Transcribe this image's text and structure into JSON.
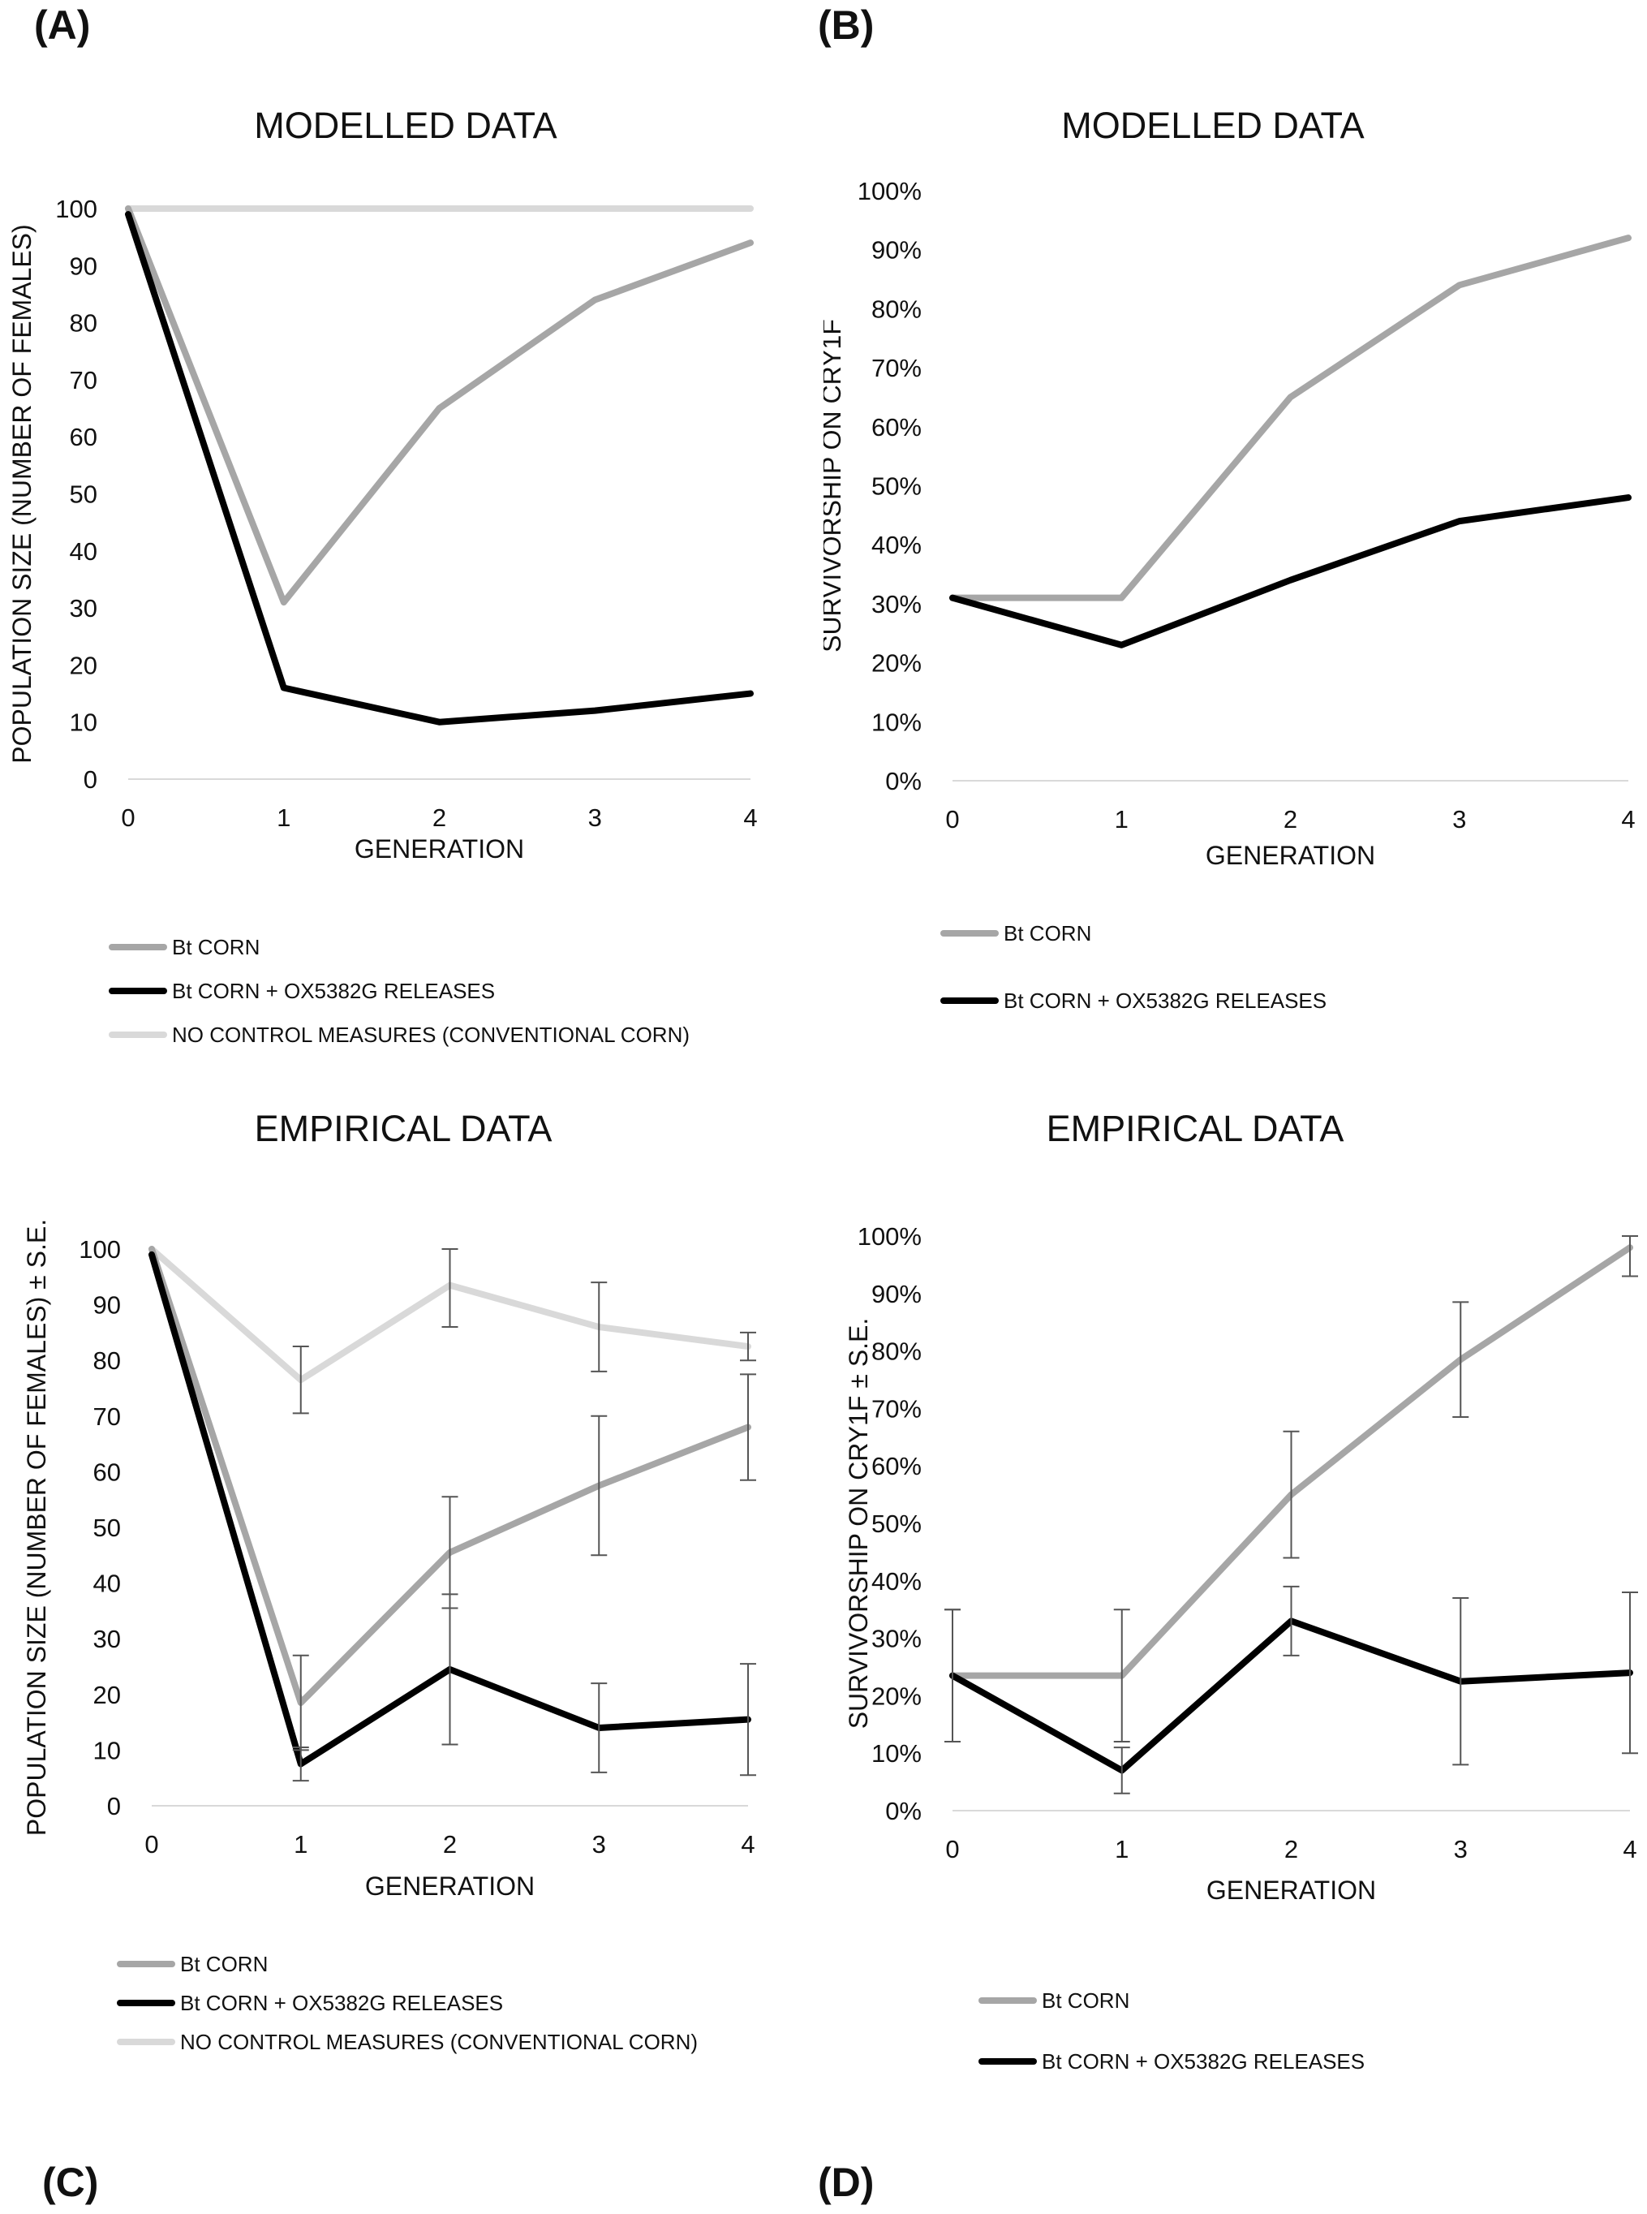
{
  "figure": {
    "panel_labels": [
      "(A)",
      "(B)",
      "(C)",
      "(D)"
    ]
  },
  "chart_data": [
    {
      "panel": "(A)",
      "type": "line",
      "title": "MODELLED DATA",
      "xlabel": "GENERATION",
      "ylabel": "POPULATION SIZE (NUMBER OF FEMALES)",
      "x": [
        0,
        1,
        2,
        3,
        4
      ],
      "xlim": [
        0,
        4
      ],
      "ylim": [
        0,
        100
      ],
      "yticks": [
        0,
        10,
        20,
        30,
        40,
        50,
        60,
        70,
        80,
        90,
        100
      ],
      "ytick_format": "number",
      "grid": false,
      "legend_position": "bottom",
      "series": [
        {
          "name": "Bt CORN",
          "color": "#a6a6a6",
          "values": [
            100,
            31,
            65,
            84,
            94
          ]
        },
        {
          "name": "Bt CORN + OX5382G RELEASES",
          "color": "#000000",
          "values": [
            99,
            16,
            10,
            12,
            15
          ]
        },
        {
          "name": "NO CONTROL MEASURES (CONVENTIONAL CORN)",
          "color": "#d9d9d9",
          "values": [
            100,
            100,
            100,
            100,
            100
          ]
        }
      ]
    },
    {
      "panel": "(B)",
      "type": "line",
      "title": "MODELLED DATA",
      "xlabel": "GENERATION",
      "ylabel": "SURVIVORSHIP ON CRY1F",
      "x": [
        0,
        1,
        2,
        3,
        4
      ],
      "xlim": [
        0,
        4
      ],
      "ylim": [
        0,
        100
      ],
      "yticks": [
        0,
        10,
        20,
        30,
        40,
        50,
        60,
        70,
        80,
        90,
        100
      ],
      "ytick_format": "percent",
      "grid": false,
      "legend_position": "bottom",
      "series": [
        {
          "name": "Bt CORN",
          "color": "#a6a6a6",
          "values": [
            31,
            31,
            65,
            84,
            92
          ]
        },
        {
          "name": "Bt CORN + OX5382G RELEASES",
          "color": "#000000",
          "values": [
            31,
            23,
            34,
            44,
            48
          ]
        }
      ]
    },
    {
      "panel": "(C)",
      "type": "line",
      "title": "EMPIRICAL DATA",
      "xlabel": "GENERATION",
      "ylabel": "POPULATION SIZE (NUMBER OF FEMALES) ± S.E.",
      "x": [
        0,
        1,
        2,
        3,
        4
      ],
      "xlim": [
        0,
        4
      ],
      "ylim": [
        0,
        100
      ],
      "yticks": [
        0,
        10,
        20,
        30,
        40,
        50,
        60,
        70,
        80,
        90,
        100
      ],
      "ytick_format": "number",
      "grid": false,
      "legend_position": "bottom",
      "series": [
        {
          "name": "Bt CORN",
          "color": "#a6a6a6",
          "values": [
            100,
            18.5,
            45.5,
            57.5,
            68
          ],
          "error": [
            null,
            8.5,
            10,
            12.5,
            9.5
          ]
        },
        {
          "name": "Bt CORN + OX5382G RELEASES",
          "color": "#000000",
          "values": [
            99,
            7.5,
            24.5,
            14,
            15.5
          ],
          "error": [
            null,
            3,
            13.5,
            8,
            10
          ]
        },
        {
          "name": "NO CONTROL MEASURES (CONVENTIONAL CORN)",
          "color": "#d9d9d9",
          "values": [
            100,
            76.5,
            93.5,
            86,
            82.5
          ],
          "error": [
            null,
            6,
            7.5,
            8,
            2.5
          ]
        }
      ]
    },
    {
      "panel": "(D)",
      "type": "line",
      "title": "EMPIRICAL DATA",
      "xlabel": "GENERATION",
      "ylabel": "SURVIVORSHIP ON CRY1F ± S.E.",
      "x": [
        0,
        1,
        2,
        3,
        4
      ],
      "xlim": [
        0,
        4
      ],
      "ylim": [
        0,
        100
      ],
      "yticks": [
        0,
        10,
        20,
        30,
        40,
        50,
        60,
        70,
        80,
        90,
        100
      ],
      "ytick_format": "percent",
      "grid": false,
      "legend_position": "bottom",
      "series": [
        {
          "name": "Bt CORN",
          "color": "#a6a6a6",
          "values": [
            23.5,
            23.5,
            55,
            78.5,
            98
          ],
          "error": [
            11.5,
            11.5,
            11,
            10,
            5
          ]
        },
        {
          "name": "Bt CORN + OX5382G RELEASES",
          "color": "#000000",
          "values": [
            23.5,
            7,
            33,
            22.5,
            24
          ],
          "error": [
            11.5,
            4,
            6,
            14.5,
            14
          ]
        }
      ]
    }
  ]
}
